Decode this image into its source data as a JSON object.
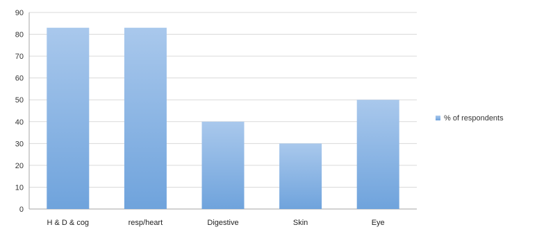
{
  "chart_data": {
    "type": "bar",
    "categories": [
      "H & D & cog",
      "resp/heart",
      "Digestive",
      "Skin",
      "Eye"
    ],
    "series": [
      {
        "name": "% of respondents",
        "values": [
          83,
          83,
          40,
          30,
          50
        ]
      }
    ],
    "yticks": [
      "0",
      "10",
      "20",
      "30",
      "40",
      "50",
      "60",
      "70",
      "80",
      "90"
    ],
    "ylim": [
      0,
      90
    ],
    "grid": true,
    "legend_position": "right",
    "colors": {
      "bar_top": "#a9c8ec",
      "bar_bottom": "#6fa3dc",
      "grid": "#d9d9d9",
      "axis": "#a6a6a6"
    }
  }
}
